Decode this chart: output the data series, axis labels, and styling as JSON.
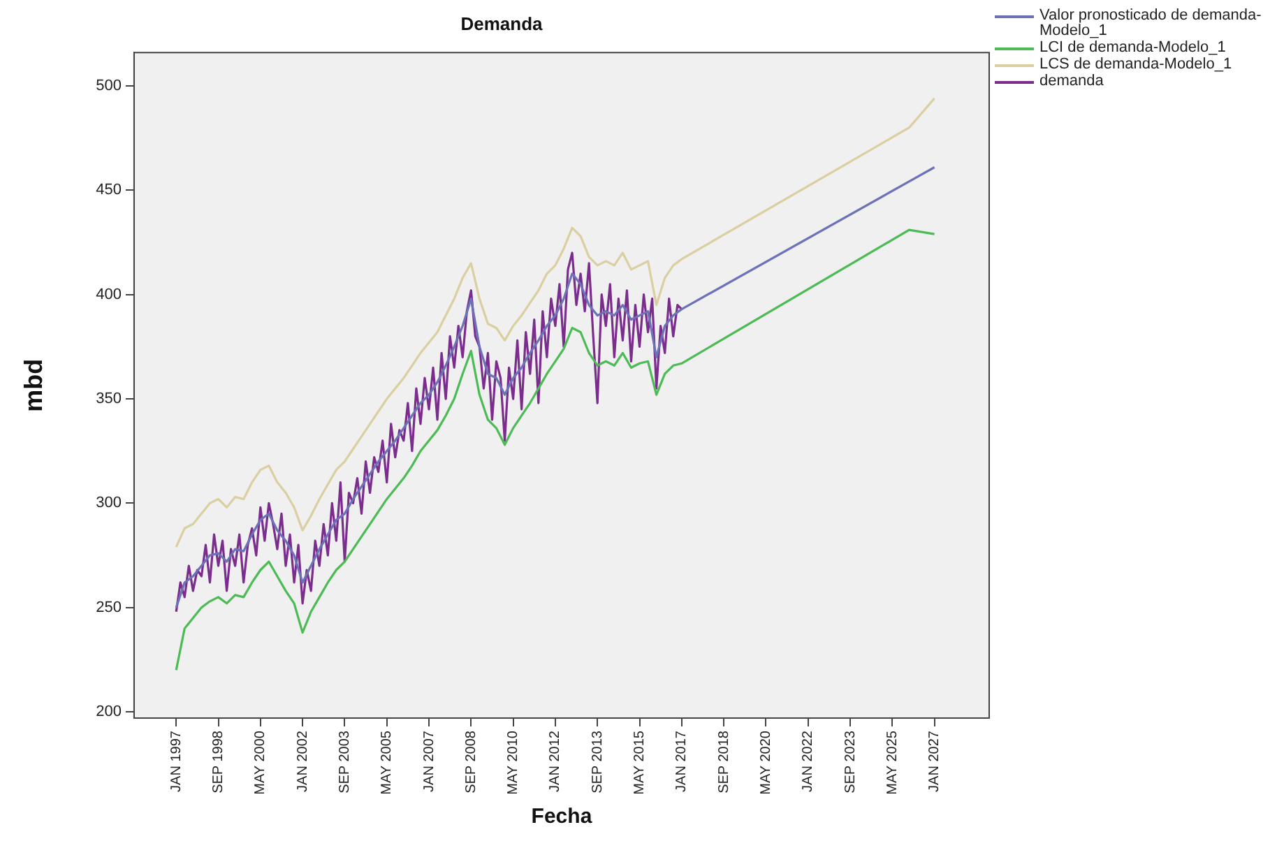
{
  "chart_data": {
    "type": "line",
    "title": "Demanda",
    "xlabel": "Fecha",
    "ylabel": "mbd",
    "legend": "top right",
    "grid": false,
    "marker": "none",
    "line_style": "solid",
    "xlim": [
      "1995-05",
      "2029-03"
    ],
    "ylim": [
      197,
      516
    ],
    "yticks": [
      200,
      250,
      300,
      350,
      400,
      450,
      500
    ],
    "xticks": [
      {
        "value": "1997-01",
        "label": "JAN 1997"
      },
      {
        "value": "1998-09",
        "label": "SEP 1998"
      },
      {
        "value": "2000-05",
        "label": "MAY 2000"
      },
      {
        "value": "2002-01",
        "label": "JAN 2002"
      },
      {
        "value": "2003-09",
        "label": "SEP 2003"
      },
      {
        "value": "2005-05",
        "label": "MAY 2005"
      },
      {
        "value": "2007-01",
        "label": "JAN 2007"
      },
      {
        "value": "2008-09",
        "label": "SEP 2008"
      },
      {
        "value": "2010-05",
        "label": "MAY 2010"
      },
      {
        "value": "2012-01",
        "label": "JAN 2012"
      },
      {
        "value": "2013-09",
        "label": "SEP 2013"
      },
      {
        "value": "2015-05",
        "label": "MAY 2015"
      },
      {
        "value": "2017-01",
        "label": "JAN 2017"
      },
      {
        "value": "2018-09",
        "label": "SEP 2018"
      },
      {
        "value": "2020-05",
        "label": "MAY 2020"
      },
      {
        "value": "2022-01",
        "label": "JAN 2022"
      },
      {
        "value": "2023-09",
        "label": "SEP 2023"
      },
      {
        "value": "2025-05",
        "label": "MAY 2025"
      },
      {
        "value": "2027-01",
        "label": "JAN 2027"
      }
    ],
    "series": [
      {
        "name": "Valor pronosticado de demanda-Modelo_1",
        "color": "#6b72b8",
        "x": [
          "1997-01",
          "1997-05",
          "1997-09",
          "1998-01",
          "1998-05",
          "1998-09",
          "1999-01",
          "1999-05",
          "1999-09",
          "2000-01",
          "2000-05",
          "2000-09",
          "2001-01",
          "2001-05",
          "2001-09",
          "2002-01",
          "2002-05",
          "2002-09",
          "2003-01",
          "2003-05",
          "2003-09",
          "2004-01",
          "2004-05",
          "2004-09",
          "2005-01",
          "2005-05",
          "2005-09",
          "2006-01",
          "2006-05",
          "2006-09",
          "2007-01",
          "2007-05",
          "2007-09",
          "2008-01",
          "2008-05",
          "2008-09",
          "2009-01",
          "2009-05",
          "2009-09",
          "2010-01",
          "2010-05",
          "2010-09",
          "2011-01",
          "2011-05",
          "2011-09",
          "2012-01",
          "2012-05",
          "2012-09",
          "2013-01",
          "2013-05",
          "2013-09",
          "2014-01",
          "2014-05",
          "2014-09",
          "2015-01",
          "2015-05",
          "2015-09",
          "2016-01",
          "2016-05",
          "2016-09",
          "2017-01",
          "2027-01"
        ],
        "values": [
          250,
          262,
          265,
          270,
          275,
          276,
          272,
          278,
          277,
          285,
          292,
          295,
          287,
          282,
          275,
          262,
          270,
          278,
          285,
          292,
          295,
          302,
          308,
          314,
          320,
          325,
          330,
          336,
          342,
          348,
          352,
          358,
          366,
          375,
          385,
          398,
          375,
          362,
          360,
          352,
          360,
          365,
          372,
          378,
          385,
          390,
          398,
          410,
          405,
          395,
          390,
          392,
          390,
          395,
          388,
          390,
          392,
          370,
          385,
          390,
          393,
          461
        ]
      },
      {
        "name": "LCI de demanda-Modelo_1",
        "color": "#4dbb55",
        "x": [
          "1997-01",
          "1997-05",
          "1997-09",
          "1998-01",
          "1998-05",
          "1998-09",
          "1999-01",
          "1999-05",
          "1999-09",
          "2000-01",
          "2000-05",
          "2000-09",
          "2001-01",
          "2001-05",
          "2001-09",
          "2002-01",
          "2002-05",
          "2002-09",
          "2003-01",
          "2003-05",
          "2003-09",
          "2004-01",
          "2004-05",
          "2004-09",
          "2005-01",
          "2005-05",
          "2005-09",
          "2006-01",
          "2006-05",
          "2006-09",
          "2007-01",
          "2007-05",
          "2007-09",
          "2008-01",
          "2008-05",
          "2008-09",
          "2009-01",
          "2009-05",
          "2009-09",
          "2010-01",
          "2010-05",
          "2010-09",
          "2011-01",
          "2011-05",
          "2011-09",
          "2012-01",
          "2012-05",
          "2012-09",
          "2013-01",
          "2013-05",
          "2013-09",
          "2014-01",
          "2014-05",
          "2014-09",
          "2015-01",
          "2015-05",
          "2015-09",
          "2016-01",
          "2016-05",
          "2016-09",
          "2017-01",
          "2026-01",
          "2027-01"
        ],
        "values": [
          220,
          240,
          245,
          250,
          253,
          255,
          252,
          256,
          255,
          262,
          268,
          272,
          265,
          258,
          252,
          238,
          248,
          255,
          262,
          268,
          272,
          278,
          284,
          290,
          296,
          302,
          307,
          312,
          318,
          325,
          330,
          335,
          342,
          350,
          362,
          373,
          352,
          340,
          336,
          328,
          336,
          342,
          348,
          355,
          362,
          368,
          374,
          384,
          382,
          372,
          366,
          368,
          366,
          372,
          365,
          367,
          368,
          352,
          362,
          366,
          367,
          431,
          429
        ]
      },
      {
        "name": "LCS de demanda-Modelo_1",
        "color": "#d9cfa0",
        "x": [
          "1997-01",
          "1997-05",
          "1997-09",
          "1998-01",
          "1998-05",
          "1998-09",
          "1999-01",
          "1999-05",
          "1999-09",
          "2000-01",
          "2000-05",
          "2000-09",
          "2001-01",
          "2001-05",
          "2001-09",
          "2002-01",
          "2002-05",
          "2002-09",
          "2003-01",
          "2003-05",
          "2003-09",
          "2004-01",
          "2004-05",
          "2004-09",
          "2005-01",
          "2005-05",
          "2005-09",
          "2006-01",
          "2006-05",
          "2006-09",
          "2007-01",
          "2007-05",
          "2007-09",
          "2008-01",
          "2008-05",
          "2008-09",
          "2009-01",
          "2009-05",
          "2009-09",
          "2010-01",
          "2010-05",
          "2010-09",
          "2011-01",
          "2011-05",
          "2011-09",
          "2012-01",
          "2012-05",
          "2012-09",
          "2013-01",
          "2013-05",
          "2013-09",
          "2014-01",
          "2014-05",
          "2014-09",
          "2015-01",
          "2015-05",
          "2015-09",
          "2016-01",
          "2016-05",
          "2016-09",
          "2017-01",
          "2026-01",
          "2027-01"
        ],
        "values": [
          279,
          288,
          290,
          295,
          300,
          302,
          298,
          303,
          302,
          310,
          316,
          318,
          310,
          305,
          298,
          287,
          294,
          302,
          309,
          316,
          320,
          326,
          332,
          338,
          344,
          350,
          355,
          360,
          366,
          372,
          377,
          382,
          390,
          398,
          408,
          415,
          398,
          386,
          384,
          378,
          385,
          390,
          396,
          402,
          410,
          414,
          422,
          432,
          428,
          418,
          414,
          416,
          414,
          420,
          412,
          414,
          416,
          395,
          408,
          414,
          417,
          480,
          494
        ]
      },
      {
        "name": "demanda",
        "color": "#7b2d8e",
        "x": [
          "1997-01",
          "1997-03",
          "1997-05",
          "1997-07",
          "1997-09",
          "1997-11",
          "1998-01",
          "1998-03",
          "1998-05",
          "1998-07",
          "1998-09",
          "1998-11",
          "1999-01",
          "1999-03",
          "1999-05",
          "1999-07",
          "1999-09",
          "1999-11",
          "2000-01",
          "2000-03",
          "2000-05",
          "2000-07",
          "2000-09",
          "2000-11",
          "2001-01",
          "2001-03",
          "2001-05",
          "2001-07",
          "2001-09",
          "2001-11",
          "2002-01",
          "2002-03",
          "2002-05",
          "2002-07",
          "2002-09",
          "2002-11",
          "2003-01",
          "2003-03",
          "2003-05",
          "2003-07",
          "2003-09",
          "2003-11",
          "2004-01",
          "2004-03",
          "2004-05",
          "2004-07",
          "2004-09",
          "2004-11",
          "2005-01",
          "2005-03",
          "2005-05",
          "2005-07",
          "2005-09",
          "2005-11",
          "2006-01",
          "2006-03",
          "2006-05",
          "2006-07",
          "2006-09",
          "2006-11",
          "2007-01",
          "2007-03",
          "2007-05",
          "2007-07",
          "2007-09",
          "2007-11",
          "2008-01",
          "2008-03",
          "2008-05",
          "2008-07",
          "2008-09",
          "2008-11",
          "2009-01",
          "2009-03",
          "2009-05",
          "2009-07",
          "2009-09",
          "2009-11",
          "2010-01",
          "2010-03",
          "2010-05",
          "2010-07",
          "2010-09",
          "2010-11",
          "2011-01",
          "2011-03",
          "2011-05",
          "2011-07",
          "2011-09",
          "2011-11",
          "2012-01",
          "2012-03",
          "2012-05",
          "2012-07",
          "2012-09",
          "2012-11",
          "2013-01",
          "2013-03",
          "2013-05",
          "2013-07",
          "2013-09",
          "2013-11",
          "2014-01",
          "2014-03",
          "2014-05",
          "2014-07",
          "2014-09",
          "2014-11",
          "2015-01",
          "2015-03",
          "2015-05",
          "2015-07",
          "2015-09",
          "2015-11",
          "2016-01",
          "2016-03",
          "2016-05",
          "2016-07",
          "2016-09",
          "2016-11",
          "2017-01"
        ],
        "values": [
          248,
          262,
          255,
          270,
          258,
          268,
          265,
          280,
          262,
          285,
          270,
          282,
          258,
          278,
          270,
          285,
          262,
          280,
          288,
          275,
          298,
          282,
          300,
          290,
          278,
          295,
          270,
          285,
          262,
          280,
          252,
          268,
          258,
          282,
          270,
          290,
          275,
          300,
          282,
          310,
          272,
          305,
          300,
          312,
          295,
          320,
          305,
          322,
          315,
          330,
          310,
          338,
          322,
          335,
          330,
          348,
          325,
          355,
          338,
          360,
          345,
          365,
          340,
          372,
          350,
          380,
          365,
          385,
          370,
          392,
          402,
          380,
          375,
          355,
          372,
          340,
          368,
          360,
          330,
          365,
          350,
          378,
          345,
          382,
          362,
          388,
          348,
          392,
          370,
          398,
          385,
          405,
          375,
          412,
          420,
          395,
          410,
          392,
          415,
          380,
          348,
          400,
          385,
          405,
          370,
          398,
          378,
          402,
          368,
          395,
          375,
          400,
          382,
          398,
          355,
          385,
          372,
          398,
          380,
          395,
          393
        ]
      }
    ]
  }
}
